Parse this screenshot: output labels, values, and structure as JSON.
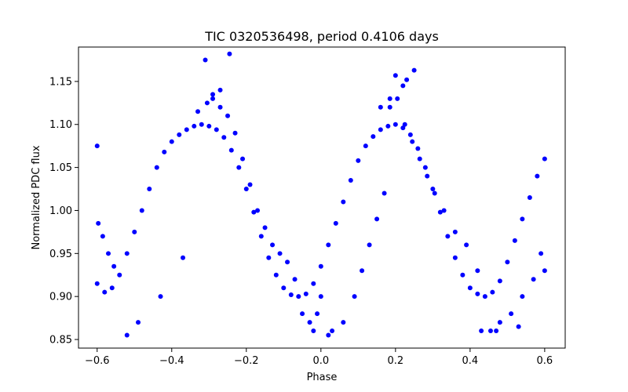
{
  "chart_data": {
    "type": "scatter",
    "title": "TIC 0320536498, period 0.4106 days",
    "xlabel": "Phase",
    "ylabel": "Normalized PDC flux",
    "xlim": [
      -0.65,
      0.655
    ],
    "ylim": [
      0.84,
      1.19
    ],
    "grid": false,
    "point_color": "#0000ff",
    "x_ticks": [
      -0.6,
      -0.4,
      -0.2,
      0.0,
      0.2,
      0.4,
      0.6
    ],
    "x_tick_labels": [
      "−0.6",
      "−0.4",
      "−0.2",
      "0.0",
      "0.2",
      "0.4",
      "0.6"
    ],
    "y_ticks": [
      0.85,
      0.9,
      0.95,
      1.0,
      1.05,
      1.1,
      1.15
    ],
    "y_tick_labels": [
      "0.85",
      "0.90",
      "0.95",
      "1.00",
      "1.05",
      "1.10",
      "1.15"
    ],
    "series": [
      {
        "x": [
          -0.6,
          -0.58,
          -0.56,
          -0.54,
          -0.52,
          -0.5,
          -0.48,
          -0.46,
          -0.44,
          -0.42,
          -0.4,
          -0.38,
          -0.36,
          -0.34,
          -0.32,
          -0.3,
          -0.28,
          -0.26,
          -0.24,
          -0.22,
          -0.2,
          -0.18,
          -0.16,
          -0.14,
          -0.12,
          -0.1,
          -0.08,
          -0.06,
          -0.04,
          -0.02,
          0.0,
          0.02,
          0.04,
          0.06,
          0.08,
          0.1,
          0.12,
          0.14,
          0.16,
          0.18,
          0.2,
          0.22,
          0.24,
          0.26,
          0.28,
          0.3,
          0.32,
          0.34,
          0.36,
          0.38,
          0.4,
          0.42,
          0.44,
          0.46,
          0.48,
          0.5,
          0.52,
          0.54,
          0.56,
          0.58,
          0.6,
          -0.6,
          -0.597,
          -0.585,
          -0.57,
          -0.555,
          -0.49,
          -0.43,
          -0.37,
          -0.33,
          -0.305,
          -0.29,
          -0.27,
          -0.25,
          -0.23,
          -0.21,
          -0.19,
          -0.17,
          -0.15,
          -0.13,
          -0.11,
          -0.09,
          -0.07,
          -0.05,
          -0.03,
          -0.01,
          0.0,
          0.03,
          0.06,
          0.09,
          0.11,
          0.13,
          0.15,
          0.17,
          0.185,
          0.205,
          0.225,
          0.245,
          0.265,
          0.285,
          0.305,
          0.33,
          0.36,
          0.39,
          0.42,
          0.455,
          0.48,
          0.51,
          0.54,
          0.57,
          0.59,
          0.6,
          -0.27,
          -0.245,
          0.2,
          0.23,
          0.25,
          0.185,
          -0.31,
          -0.29,
          0.16,
          0.22,
          -0.02,
          0.02,
          -0.52,
          0.43,
          0.47,
          0.53
        ],
        "y": [
          0.915,
          0.905,
          0.91,
          0.925,
          0.95,
          0.975,
          1.0,
          1.025,
          1.05,
          1.068,
          1.08,
          1.088,
          1.094,
          1.098,
          1.1,
          1.098,
          1.094,
          1.085,
          1.07,
          1.05,
          1.025,
          0.998,
          0.97,
          0.945,
          0.925,
          0.91,
          0.902,
          0.9,
          0.903,
          0.915,
          0.935,
          0.96,
          0.985,
          1.01,
          1.035,
          1.058,
          1.075,
          1.086,
          1.094,
          1.098,
          1.1,
          1.096,
          1.088,
          1.072,
          1.05,
          1.025,
          0.998,
          0.97,
          0.945,
          0.925,
          0.91,
          0.903,
          0.9,
          0.905,
          0.918,
          0.94,
          0.965,
          0.99,
          1.015,
          1.04,
          1.06,
          1.075,
          0.985,
          0.97,
          0.95,
          0.935,
          0.87,
          0.9,
          0.945,
          1.115,
          1.125,
          1.135,
          1.12,
          1.11,
          1.09,
          1.06,
          1.03,
          1.0,
          0.98,
          0.96,
          0.95,
          0.94,
          0.92,
          0.88,
          0.87,
          0.88,
          0.9,
          0.86,
          0.87,
          0.9,
          0.93,
          0.96,
          0.99,
          1.02,
          1.12,
          1.13,
          1.1,
          1.08,
          1.06,
          1.04,
          1.02,
          1.0,
          0.975,
          0.96,
          0.93,
          0.86,
          0.87,
          0.88,
          0.9,
          0.92,
          0.95,
          0.93,
          1.14,
          1.182,
          1.157,
          1.152,
          1.163,
          1.13,
          1.175,
          1.13,
          1.12,
          1.145,
          0.86,
          0.855,
          0.855,
          0.86,
          0.86,
          0.865
        ]
      }
    ]
  }
}
